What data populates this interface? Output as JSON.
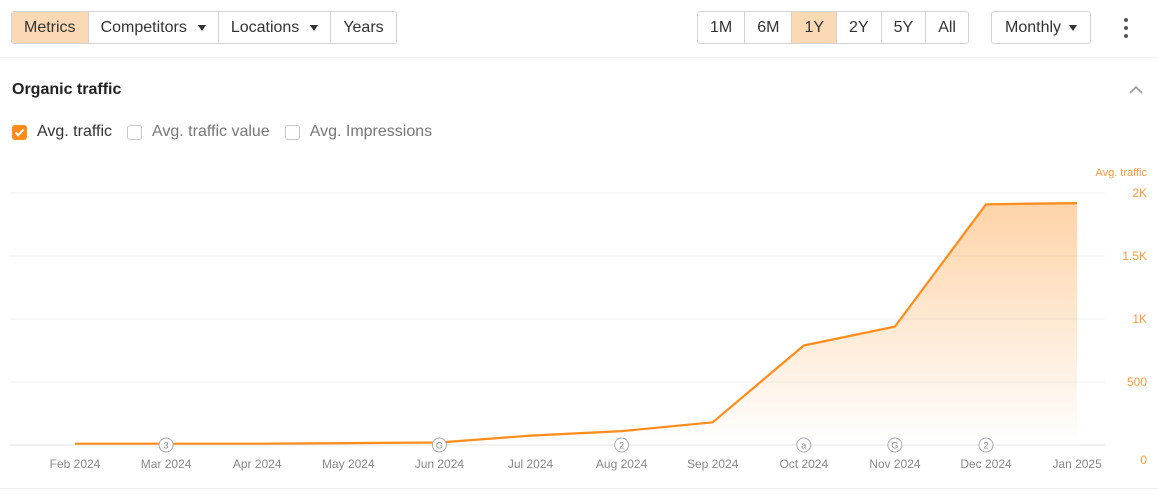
{
  "toolbar": {
    "tabs": [
      {
        "label": "Metrics",
        "active": true,
        "dropdown": false
      },
      {
        "label": "Competitors",
        "active": false,
        "dropdown": true
      },
      {
        "label": "Locations",
        "active": false,
        "dropdown": true
      },
      {
        "label": "Years",
        "active": false,
        "dropdown": false
      }
    ],
    "ranges": [
      {
        "label": "1M",
        "active": false
      },
      {
        "label": "6M",
        "active": false
      },
      {
        "label": "1Y",
        "active": true
      },
      {
        "label": "2Y",
        "active": false
      },
      {
        "label": "5Y",
        "active": false
      },
      {
        "label": "All",
        "active": false
      }
    ],
    "granularity": "Monthly",
    "more_icon": "kebab-vertical-icon"
  },
  "section": {
    "title": "Organic traffic",
    "collapse_icon": "chevron-up-icon"
  },
  "legend": [
    {
      "label": "Avg. traffic",
      "checked": true
    },
    {
      "label": "Avg. traffic value",
      "checked": false
    },
    {
      "label": "Avg. Impressions",
      "checked": false
    }
  ],
  "colors": {
    "accent": "#ff8c1a",
    "active_bg": "#fcd9b5",
    "axis_label": "#ff9a3a",
    "grid": "#f0f0f0",
    "marker": "#aaaaaa"
  },
  "chart_data": {
    "type": "area",
    "x": [
      "Feb 2024",
      "Mar 2024",
      "Apr 2024",
      "May 2024",
      "Jun 2024",
      "Jul 2024",
      "Aug 2024",
      "Sep 2024",
      "Oct 2024",
      "Nov 2024",
      "Dec 2024",
      "Jan 2025"
    ],
    "series": [
      {
        "name": "Avg. traffic",
        "values": [
          10,
          10,
          10,
          15,
          20,
          75,
          110,
          180,
          790,
          940,
          1910,
          1920
        ]
      }
    ],
    "y_axis_title": "Avg. traffic",
    "y_ticks": [
      0,
      500,
      1000,
      1500,
      2000
    ],
    "y_tick_labels": [
      "0",
      "500",
      "1K",
      "1.5K",
      "2K"
    ],
    "ylim": [
      0,
      2000
    ],
    "y_axis_side": "right",
    "grid": true,
    "annotations": [
      {
        "x": "Mar 2024",
        "label": "3"
      },
      {
        "x": "Jun 2024",
        "label": "G"
      },
      {
        "x": "Aug 2024",
        "label": "2"
      },
      {
        "x": "Oct 2024",
        "label": "a"
      },
      {
        "x": "Nov 2024",
        "label": "G"
      },
      {
        "x": "Dec 2024",
        "label": "2"
      }
    ]
  }
}
